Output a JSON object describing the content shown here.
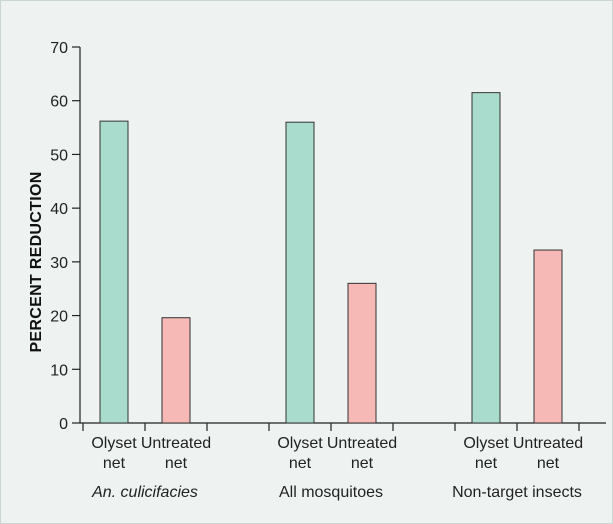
{
  "chart_data": {
    "type": "bar",
    "ylabel": "PERCENT REDUCTION",
    "ylim": [
      0,
      70
    ],
    "yticks": [
      0,
      10,
      20,
      30,
      40,
      50,
      60,
      70
    ],
    "grid": false,
    "legend": "none",
    "groups": [
      {
        "label": "An. culicifacies",
        "italic": true,
        "bars": [
          {
            "category": "Olyset net",
            "value": 56.2,
            "color": "#aadccd"
          },
          {
            "category": "Untreated net",
            "value": 19.6,
            "color": "#f7b9b5"
          }
        ]
      },
      {
        "label": "All mosquitoes",
        "italic": false,
        "bars": [
          {
            "category": "Olyset net",
            "value": 56.0,
            "color": "#aadccd"
          },
          {
            "category": "Untreated net",
            "value": 26.0,
            "color": "#f7b9b5"
          }
        ]
      },
      {
        "label": "Non-target insects",
        "italic": false,
        "bars": [
          {
            "category": "Olyset net",
            "value": 61.5,
            "color": "#aadccd"
          },
          {
            "category": "Untreated net",
            "value": 32.2,
            "color": "#f7b9b5"
          }
        ]
      }
    ]
  }
}
